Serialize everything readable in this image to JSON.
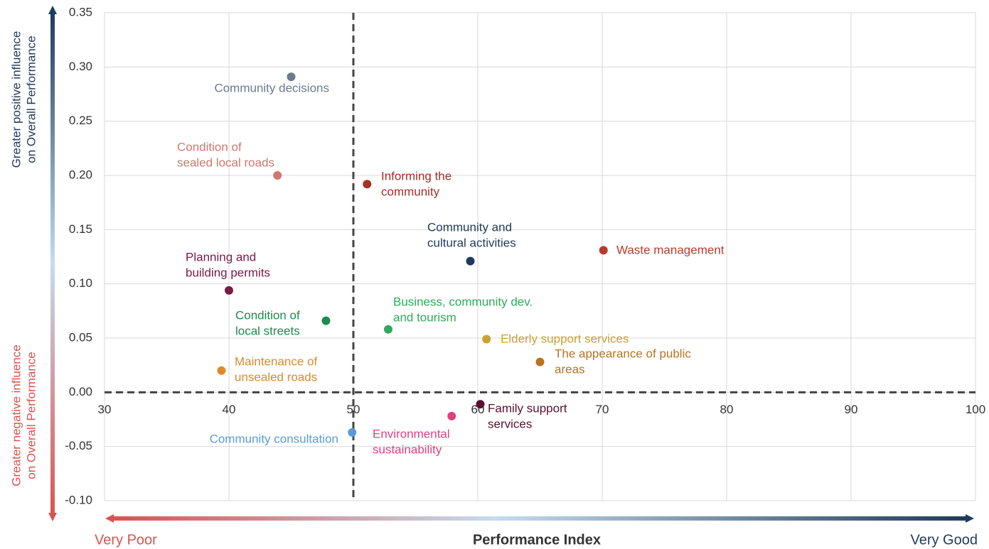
{
  "chart_data": {
    "type": "scatter",
    "xlabel": "Performance Index",
    "x_low_label": "Very Poor",
    "x_high_label": "Very Good",
    "y_high_label": [
      "Greater positive influence",
      "on Overall Performance"
    ],
    "y_low_label": [
      "Greater negative influence",
      "on Overall Performance"
    ],
    "xlim": [
      30,
      100
    ],
    "xticks": [
      30,
      40,
      50,
      60,
      70,
      80,
      90,
      100
    ],
    "ylim": [
      -0.1,
      0.35
    ],
    "yticks": [
      {
        "value": -0.1,
        "label": "-0.10"
      },
      {
        "value": -0.05,
        "label": "-0.05"
      },
      {
        "value": 0,
        "label": "0.00"
      },
      {
        "value": 0.05,
        "label": "0.05"
      },
      {
        "value": 0.1,
        "label": "0.10"
      },
      {
        "value": 0.15,
        "label": "0.15"
      },
      {
        "value": 0.2,
        "label": "0.20"
      },
      {
        "value": 0.25,
        "label": "0.25"
      },
      {
        "value": 0.3,
        "label": "0.30"
      },
      {
        "value": 0.35,
        "label": "0.35"
      }
    ],
    "xref": 50,
    "yref": 0,
    "grid": true,
    "labels": [
      [
        "Community decisions"
      ],
      [
        "Condition of",
        "sealed local roads"
      ],
      [
        "Informing the",
        "community"
      ],
      [
        "Community and",
        "cultural activities"
      ],
      [
        "Waste management"
      ],
      [
        "Planning and",
        "building permits"
      ],
      [
        "Condition of",
        "local streets"
      ],
      [
        "Business, community dev.",
        "and tourism"
      ],
      [
        "Elderly support services"
      ],
      [
        "The appearance of public",
        "areas"
      ],
      [
        "Maintenance of",
        "unsealed roads"
      ],
      [
        "Family support",
        "services"
      ],
      [
        "Environmental",
        "sustainability"
      ],
      [
        "Community consultation"
      ]
    ],
    "x": [
      45.0,
      43.9,
      51.1,
      59.4,
      70.1,
      40.0,
      47.8,
      52.8,
      60.7,
      65.0,
      39.4,
      60.2,
      57.9,
      49.9
    ],
    "values": [
      0.291,
      0.2,
      0.192,
      0.121,
      0.131,
      0.094,
      0.066,
      0.058,
      0.049,
      0.028,
      0.02,
      -0.011,
      -0.022,
      -0.037
    ],
    "colors": [
      "#6b7a8f",
      "#d0766f",
      "#a33125",
      "#1f3b5a",
      "#b83a2c",
      "#7a1a45",
      "#1e8a4c",
      "#2eaa5b",
      "#c9a232",
      "#b8741f",
      "#de8a2a",
      "#5a0f2e",
      "#e0407f",
      "#5b9bd5"
    ]
  }
}
